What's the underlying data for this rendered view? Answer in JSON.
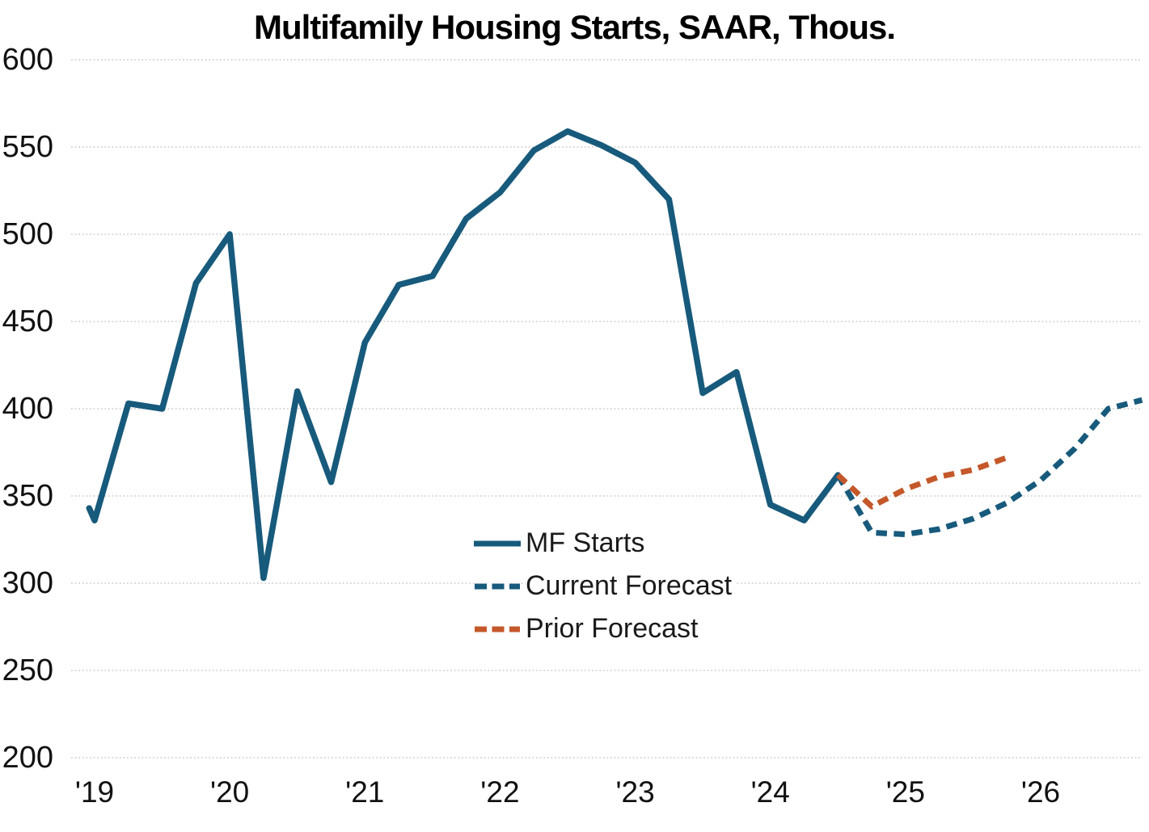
{
  "chart_data": {
    "type": "line",
    "title": "Multifamily Housing Starts, SAAR, Thous.",
    "frequency": "quarterly",
    "y_ticks": [
      600,
      550,
      500,
      450,
      400,
      350,
      300,
      250,
      200
    ],
    "y_range": [
      200,
      600
    ],
    "x_tick_labels": [
      "'19",
      "'20",
      "'21",
      "'22",
      "'23",
      "'24",
      "'25",
      "'26"
    ],
    "grid": "horizontal-dotted",
    "legend_position": "inside-lower-middle",
    "colors": {
      "history_blue": "#175A7C",
      "forecast_blue": "#175A7C",
      "prior_orange": "#C4582A",
      "gridline": "#cccccc",
      "text": "#111111"
    },
    "series": [
      {
        "name": "MF Starts",
        "style": "solid",
        "color": "#175A7C",
        "start_quarter": "2019 Q1",
        "lead_in": {
          "quarter_offset": -0.16,
          "value": 343
        },
        "values": [
          336,
          403,
          400,
          472,
          500,
          303,
          410,
          358,
          438,
          471,
          476,
          509,
          524,
          548,
          559,
          551,
          541,
          520,
          409,
          421,
          345,
          336,
          362
        ]
      },
      {
        "name": "Current Forecast",
        "style": "dashed",
        "color": "#175A7C",
        "start_quarter": "2024 Q3",
        "values": [
          362,
          329,
          328,
          331,
          337,
          346,
          359,
          377,
          400,
          405
        ]
      },
      {
        "name": "Prior Forecast",
        "style": "dashed",
        "color": "#C4582A",
        "start_quarter": "2024 Q3",
        "values": [
          362,
          344,
          354,
          361,
          365,
          372
        ]
      }
    ]
  }
}
